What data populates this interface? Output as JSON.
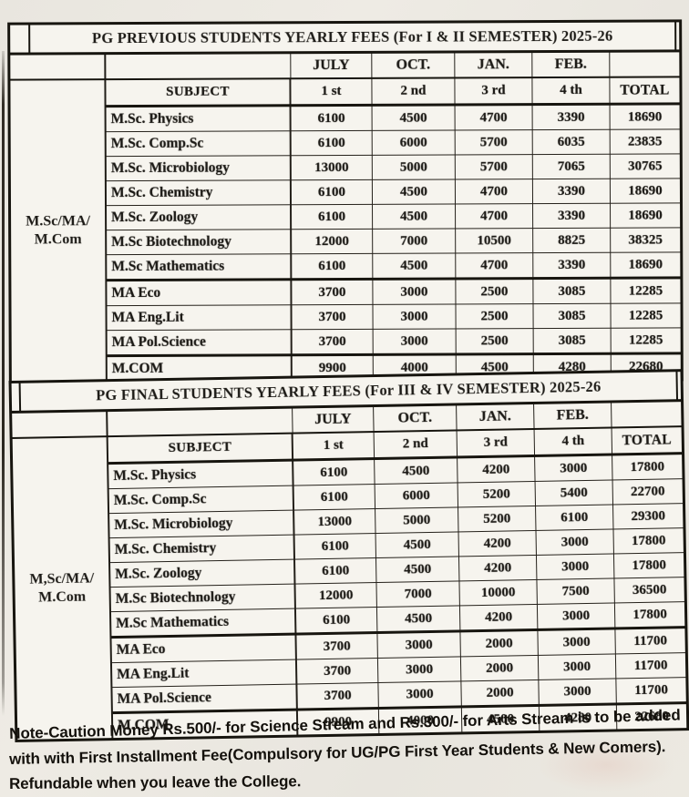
{
  "colors": {
    "paper": "#ebe8e1",
    "cell_background": "#f6f4ee",
    "ink": "#1c1a16",
    "border": "#17150f",
    "smudge_pink": "#e08c78"
  },
  "tables": [
    {
      "title": "PG PREVIOUS STUDENTS YEARLY FEES (For I & II SEMESTER) 2025-26",
      "group_label_line1": "M.Sc/MA/",
      "group_label_line2": "M.Com",
      "columns": {
        "months": [
          "JULY",
          "OCT.",
          "JAN.",
          "FEB."
        ],
        "subject_header": "SUBJECT",
        "installments": [
          "1 st",
          "2 nd",
          "3 rd",
          "4 th"
        ],
        "total_header": "TOTAL"
      },
      "rows": [
        {
          "subject": "M.Sc. Physics",
          "values": [
            "6100",
            "4500",
            "4700",
            "3390",
            "18690"
          ]
        },
        {
          "subject": "M.Sc. Comp.Sc",
          "values": [
            "6100",
            "6000",
            "5700",
            "6035",
            "23835"
          ]
        },
        {
          "subject": "M.Sc. Microbiology",
          "values": [
            "13000",
            "5000",
            "5700",
            "7065",
            "30765"
          ]
        },
        {
          "subject": "M.Sc. Chemistry",
          "values": [
            "6100",
            "4500",
            "4700",
            "3390",
            "18690"
          ]
        },
        {
          "subject": "M.Sc. Zoology",
          "values": [
            "6100",
            "4500",
            "4700",
            "3390",
            "18690"
          ]
        },
        {
          "subject": "M.Sc Biotechnology",
          "values": [
            "12000",
            "7000",
            "10500",
            "8825",
            "38325"
          ]
        },
        {
          "subject": "M.Sc Mathematics",
          "values": [
            "6100",
            "4500",
            "4700",
            "3390",
            "18690"
          ]
        },
        {
          "subject": "MA Eco",
          "values": [
            "3700",
            "3000",
            "2500",
            "3085",
            "12285"
          ]
        },
        {
          "subject": "MA Eng.Lit",
          "values": [
            "3700",
            "3000",
            "2500",
            "3085",
            "12285"
          ]
        },
        {
          "subject": "MA Pol.Science",
          "values": [
            "3700",
            "3000",
            "2500",
            "3085",
            "12285"
          ]
        },
        {
          "subject": "M.COM",
          "values": [
            "9900",
            "4000",
            "4500",
            "4280",
            "22680"
          ]
        }
      ]
    },
    {
      "title": "PG FINAL STUDENTS YEARLY FEES (For III & IV SEMESTER) 2025-26",
      "group_label_line1": "M,Sc/MA/",
      "group_label_line2": "M.Com",
      "columns": {
        "months": [
          "JULY",
          "OCT.",
          "JAN.",
          "FEB."
        ],
        "subject_header": "SUBJECT",
        "installments": [
          "1 st",
          "2 nd",
          "3 rd",
          "4 th"
        ],
        "total_header": "TOTAL"
      },
      "rows": [
        {
          "subject": "M.Sc. Physics",
          "values": [
            "6100",
            "4500",
            "4200",
            "3000",
            "17800"
          ]
        },
        {
          "subject": "M.Sc. Comp.Sc",
          "values": [
            "6100",
            "6000",
            "5200",
            "5400",
            "22700"
          ]
        },
        {
          "subject": "M.Sc. Microbiology",
          "values": [
            "13000",
            "5000",
            "5200",
            "6100",
            "29300"
          ]
        },
        {
          "subject": "M.Sc. Chemistry",
          "values": [
            "6100",
            "4500",
            "4200",
            "3000",
            "17800"
          ]
        },
        {
          "subject": "M.Sc. Zoology",
          "values": [
            "6100",
            "4500",
            "4200",
            "3000",
            "17800"
          ]
        },
        {
          "subject": "M.Sc Biotechnology",
          "values": [
            "12000",
            "7000",
            "10000",
            "7500",
            "36500"
          ]
        },
        {
          "subject": "M.Sc Mathematics",
          "values": [
            "6100",
            "4500",
            "4200",
            "3000",
            "17800"
          ]
        },
        {
          "subject": "MA Eco",
          "values": [
            "3700",
            "3000",
            "2000",
            "3000",
            "11700"
          ]
        },
        {
          "subject": "MA Eng.Lit",
          "values": [
            "3700",
            "3000",
            "2000",
            "3000",
            "11700"
          ]
        },
        {
          "subject": "MA Pol.Science",
          "values": [
            "3700",
            "3000",
            "2000",
            "3000",
            "11700"
          ]
        },
        {
          "subject": "M.COM",
          "values": [
            "9900",
            "4000",
            "4500",
            "4280",
            "22680"
          ]
        }
      ]
    }
  ],
  "note_lines": {
    "line1": "Note-Caution Money Rs.500/- for Science Stream and Rs.300/- for Arts Stream is to be added",
    "line2": "with with First Installment Fee(Compulsory for UG/PG First Year Students & New Comers).",
    "line3": "Refundable when you leave the College."
  }
}
